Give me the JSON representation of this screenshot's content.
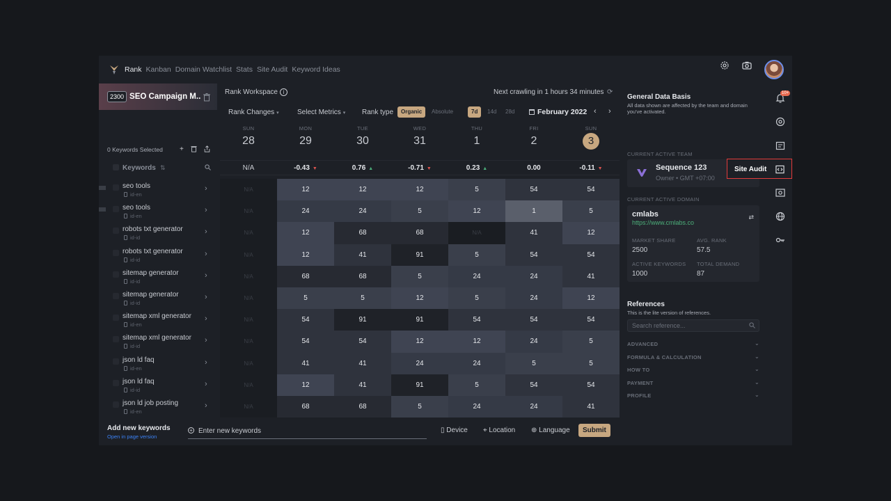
{
  "nav": {
    "items": [
      "Rank",
      "Kanban",
      "Domain Watchlist",
      "Stats",
      "Site Audit",
      "Keyword Ideas"
    ],
    "active_index": 0
  },
  "campaign": {
    "badge": "2300",
    "title": "SEO Campaign M.."
  },
  "left": {
    "selected_label": "0 Keywords Selected",
    "keywords_header": "Keywords",
    "keywords": [
      {
        "name": "seo tools",
        "locale": "id-en",
        "marker": true
      },
      {
        "name": "seo tools",
        "locale": "id-en",
        "marker": true
      },
      {
        "name": "robots txt generator",
        "locale": "id-id",
        "marker": false
      },
      {
        "name": "robots txt generator",
        "locale": "id-id",
        "marker": false
      },
      {
        "name": "sitemap generator",
        "locale": "id-id",
        "marker": false
      },
      {
        "name": "sitemap generator",
        "locale": "id-id",
        "marker": false
      },
      {
        "name": "sitemap xml generator",
        "locale": "id-en",
        "marker": false
      },
      {
        "name": "sitemap xml generator",
        "locale": "id-id",
        "marker": false
      },
      {
        "name": "json ld faq",
        "locale": "id-en",
        "marker": false
      },
      {
        "name": "json ld faq",
        "locale": "id-id",
        "marker": false
      },
      {
        "name": "json ld job posting",
        "locale": "id-en",
        "marker": false
      }
    ]
  },
  "workspace": {
    "title": "Rank Workspace",
    "crawl": "Next crawling in 1 hours 34 minutes",
    "rank_changes": "Rank Changes",
    "select_metrics": "Select Metrics",
    "rank_type_label": "Rank type",
    "rank_types": [
      "Organic",
      "Absolute"
    ],
    "periods": [
      "7d",
      "14d",
      "28d"
    ],
    "month": "February 2022"
  },
  "days": [
    {
      "dow": "SUN",
      "num": "28",
      "change": "N/A",
      "dir": ""
    },
    {
      "dow": "MON",
      "num": "29",
      "change": "-0.43",
      "dir": "down"
    },
    {
      "dow": "TUE",
      "num": "30",
      "change": "0.76",
      "dir": "up"
    },
    {
      "dow": "WED",
      "num": "31",
      "change": "-0.71",
      "dir": "down"
    },
    {
      "dow": "THU",
      "num": "1",
      "change": "0.23",
      "dir": "up"
    },
    {
      "dow": "FRI",
      "num": "2",
      "change": "0.00",
      "dir": ""
    },
    {
      "dow": "SUN",
      "num": "3",
      "change": "-0.11",
      "dir": "down"
    }
  ],
  "ranks": [
    [
      "N/A",
      "12",
      "12",
      "12",
      "5",
      "54",
      "54"
    ],
    [
      "N/A",
      "24",
      "24",
      "5",
      "12",
      "1",
      "5"
    ],
    [
      "N/A",
      "12",
      "68",
      "68",
      "N/A",
      "41",
      "12"
    ],
    [
      "N/A",
      "12",
      "41",
      "91",
      "5",
      "54",
      "54"
    ],
    [
      "N/A",
      "68",
      "68",
      "5",
      "24",
      "24",
      "41"
    ],
    [
      "N/A",
      "5",
      "5",
      "12",
      "5",
      "24",
      "12"
    ],
    [
      "N/A",
      "54",
      "91",
      "91",
      "54",
      "54",
      "54"
    ],
    [
      "N/A",
      "54",
      "54",
      "12",
      "12",
      "24",
      "5"
    ],
    [
      "N/A",
      "41",
      "41",
      "24",
      "24",
      "5",
      "5"
    ],
    [
      "N/A",
      "12",
      "41",
      "91",
      "5",
      "54",
      "54"
    ],
    [
      "N/A",
      "68",
      "68",
      "5",
      "24",
      "24",
      "41"
    ]
  ],
  "bottom": {
    "add_title": "Add new keywords",
    "add_link": "Open in page version",
    "input_placeholder": "Enter new keywords",
    "device": "Device",
    "location": "Location",
    "language": "Language",
    "submit": "Submit"
  },
  "right": {
    "title": "General Data Basis",
    "desc": "All data shown are affected by the team and domain you've activated.",
    "team_label": "CURRENT ACTIVE TEAM",
    "team_name": "Sequence 123",
    "team_sub": "Owner • GMT +07:00",
    "domain_label": "CURRENT ACTIVE DOMAIN",
    "domain_name": "cmlabs",
    "domain_url": "https://www.cmlabs.co",
    "stats": [
      {
        "label": "MARKET SHARE",
        "value": "2500"
      },
      {
        "label": "AVG. RANK",
        "value": "57.5"
      },
      {
        "label": "ACTIVE KEYWORDS",
        "value": "1000"
      },
      {
        "label": "TOTAL DEMAND",
        "value": "87"
      }
    ],
    "ref_title": "References",
    "ref_desc": "This is the lite version of references.",
    "ref_placeholder": "Search reference...",
    "accordions": [
      "ADVANCED",
      "FORMULA & CALCULATION",
      "HOW TO",
      "PAYMENT",
      "PROFILE"
    ]
  },
  "rail": {
    "notif_badge": "10+",
    "tooltip": "Site Audit"
  },
  "colors": {
    "accent": "#c7a780",
    "bg": "#1d2026",
    "highlight_border": "#e33b3b"
  }
}
